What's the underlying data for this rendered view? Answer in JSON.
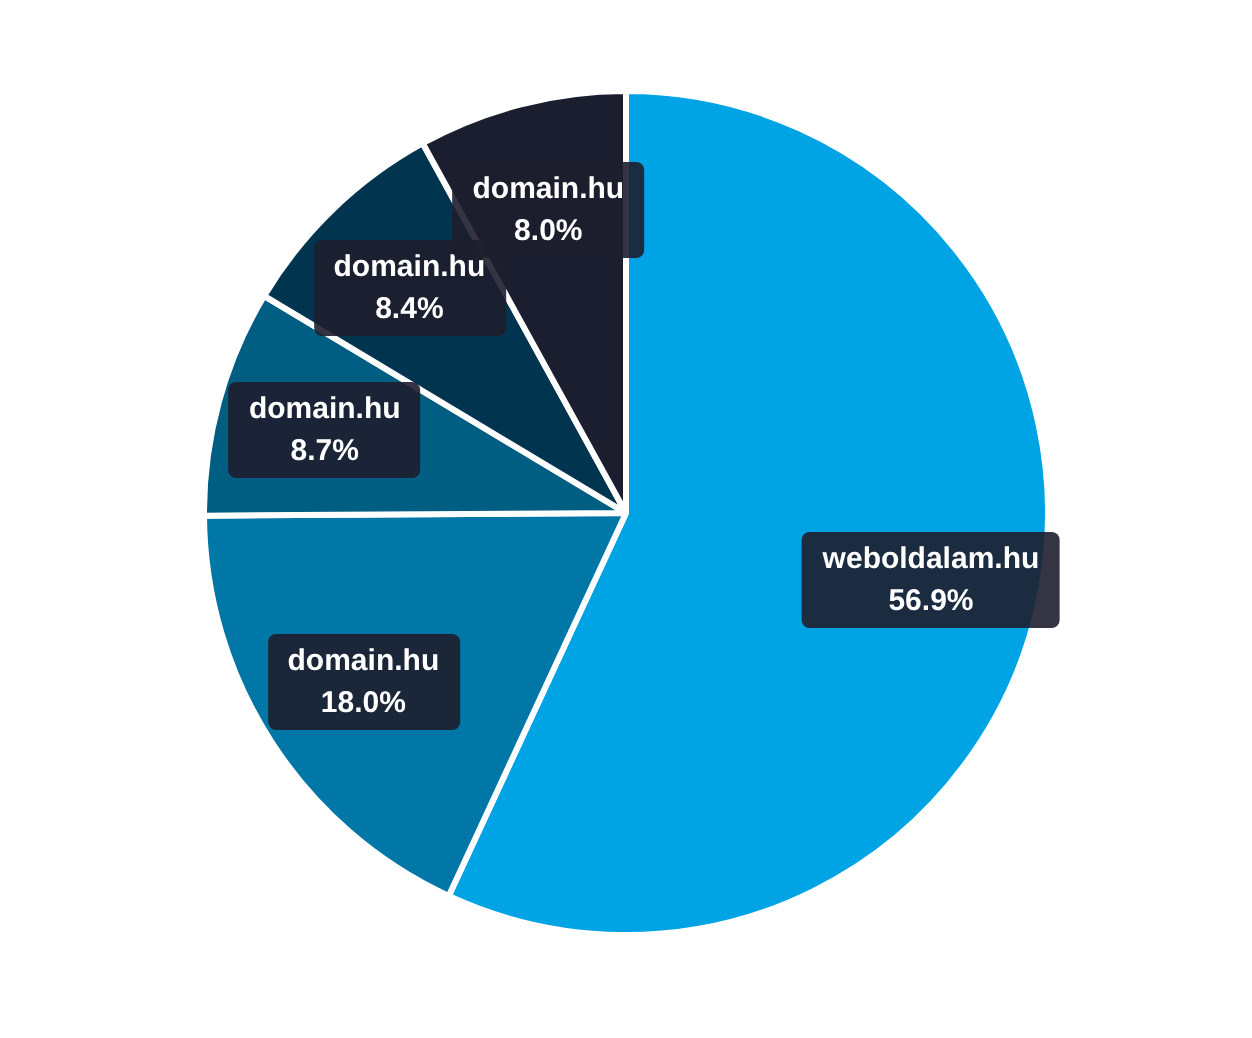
{
  "chart_data": {
    "type": "pie",
    "categories": [
      "weboldalam.hu",
      "domain.hu",
      "domain.hu",
      "domain.hu",
      "domain.hu"
    ],
    "values": [
      56.9,
      18.0,
      8.7,
      8.4,
      8.0
    ],
    "value_labels": [
      "56.9%",
      "18.0%",
      "8.7%",
      "8.4%",
      "8.0%"
    ],
    "colors": [
      "#00a3e3",
      "#0077a6",
      "#005e83",
      "#00344f",
      "#1b1e2e"
    ],
    "legend": false
  }
}
